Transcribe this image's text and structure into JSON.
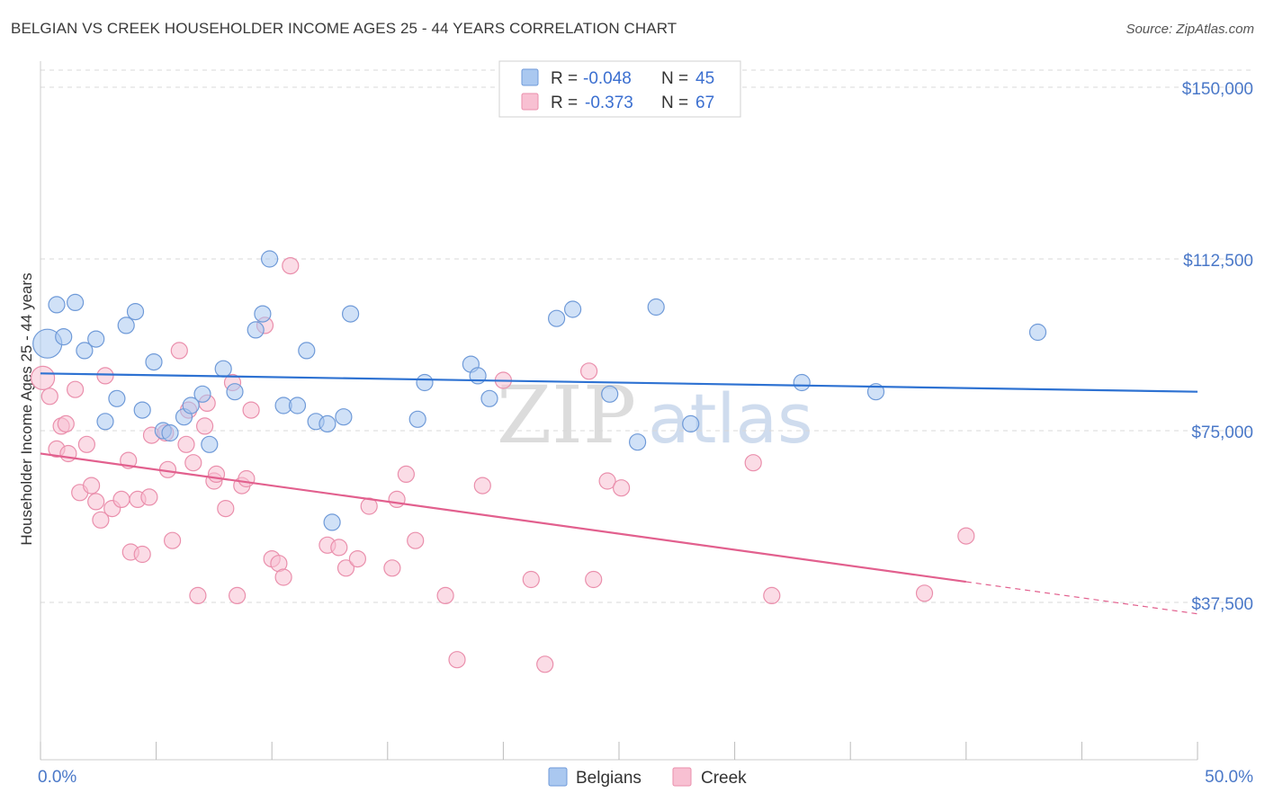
{
  "header": {
    "title": "BELGIAN VS CREEK HOUSEHOLDER INCOME AGES 25 - 44 YEARS CORRELATION CHART",
    "source": "Source: ZipAtlas.com"
  },
  "watermark": {
    "part1": "ZIP",
    "part2": "atlas"
  },
  "colors": {
    "belgian_fill": "#aac8f0",
    "belgian_stroke": "#6f9ad8",
    "belgian_line": "#2e72d2",
    "creek_fill": "#f8c0d2",
    "creek_stroke": "#ea8fac",
    "creek_line": "#e2608e",
    "grid": "#d8d8d8",
    "axis_label": "#4a78c8"
  },
  "legend": {
    "rows": [
      {
        "r_label": "R = ",
        "r_value": "-0.048",
        "n_label": "N = ",
        "n_value": "45"
      },
      {
        "r_label": "R = ",
        "r_value": "-0.373",
        "n_label": "N = ",
        "n_value": "67"
      }
    ]
  },
  "bottom_legend": {
    "items": [
      {
        "label": "Belgians"
      },
      {
        "label": "Creek"
      }
    ]
  },
  "chart_data": {
    "type": "scatter",
    "title": "BELGIAN VS CREEK HOUSEHOLDER INCOME AGES 25 - 44 YEARS CORRELATION CHART",
    "xlabel": "",
    "ylabel": "Householder Income Ages 25 - 44 years",
    "xlim": [
      0,
      50
    ],
    "ylim": [
      0,
      155000
    ],
    "x_tick_labels": [
      {
        "value": 0,
        "label": "0.0%"
      },
      {
        "value": 50,
        "label": "50.0%"
      }
    ],
    "x_minor_ticks": [
      0,
      5,
      10,
      15,
      20,
      25,
      30,
      35,
      40,
      45,
      50
    ],
    "y_ticks": [
      {
        "value": 37500,
        "label": "$37,500"
      },
      {
        "value": 75000,
        "label": "$75,000"
      },
      {
        "value": 112500,
        "label": "$112,500"
      },
      {
        "value": 150000,
        "label": "$150,000"
      }
    ],
    "series": [
      {
        "name": "Belgians",
        "trend": {
          "x1": 0,
          "y1": 87500,
          "x2": 50,
          "y2": 83500,
          "solid_to": 50
        },
        "points": [
          [
            0.3,
            94000,
            16
          ],
          [
            0.7,
            102500,
            9
          ],
          [
            1.0,
            95500,
            9
          ],
          [
            1.5,
            103000,
            9
          ],
          [
            1.9,
            92500,
            9
          ],
          [
            2.4,
            95000,
            9
          ],
          [
            2.8,
            77000,
            9
          ],
          [
            3.3,
            82000,
            9
          ],
          [
            3.7,
            98000,
            9
          ],
          [
            4.1,
            101000,
            9
          ],
          [
            4.4,
            79500,
            9
          ],
          [
            4.9,
            90000,
            9
          ],
          [
            5.3,
            75000,
            9
          ],
          [
            5.6,
            74500,
            9
          ],
          [
            6.2,
            78000,
            9
          ],
          [
            6.5,
            80500,
            9
          ],
          [
            7.0,
            83000,
            9
          ],
          [
            7.3,
            72000,
            9
          ],
          [
            7.9,
            88500,
            9
          ],
          [
            8.4,
            83500,
            9
          ],
          [
            9.3,
            97000,
            9
          ],
          [
            9.6,
            100500,
            9
          ],
          [
            9.9,
            112500,
            9
          ],
          [
            10.5,
            80500,
            9
          ],
          [
            11.1,
            80500,
            9
          ],
          [
            11.5,
            92500,
            9
          ],
          [
            11.9,
            77000,
            9
          ],
          [
            12.4,
            76500,
            9
          ],
          [
            13.1,
            78000,
            9
          ],
          [
            13.4,
            100500,
            9
          ],
          [
            16.3,
            77500,
            9
          ],
          [
            16.6,
            85500,
            9
          ],
          [
            18.6,
            89500,
            9
          ],
          [
            18.9,
            87000,
            9
          ],
          [
            19.4,
            82000,
            9
          ],
          [
            22.3,
            99500,
            9
          ],
          [
            23.0,
            101500,
            9
          ],
          [
            24.6,
            83000,
            9
          ],
          [
            25.8,
            72500,
            9
          ],
          [
            26.6,
            102000,
            9
          ],
          [
            28.1,
            76500,
            9
          ],
          [
            32.9,
            85500,
            9
          ],
          [
            36.1,
            83500,
            9
          ],
          [
            43.1,
            96500,
            9
          ],
          [
            12.6,
            55000,
            9
          ]
        ]
      },
      {
        "name": "Creek",
        "trend": {
          "x1": 0,
          "y1": 70000,
          "x2": 50,
          "y2": 35000,
          "solid_to": 40
        },
        "points": [
          [
            0.1,
            86500,
            13
          ],
          [
            0.4,
            82500,
            9
          ],
          [
            0.7,
            71000,
            9
          ],
          [
            0.9,
            76000,
            9
          ],
          [
            1.1,
            76500,
            9
          ],
          [
            1.2,
            70000,
            9
          ],
          [
            1.5,
            84000,
            9
          ],
          [
            1.7,
            61500,
            9
          ],
          [
            2.0,
            72000,
            9
          ],
          [
            2.2,
            63000,
            9
          ],
          [
            2.4,
            59500,
            9
          ],
          [
            2.6,
            55500,
            9
          ],
          [
            2.8,
            87000,
            9
          ],
          [
            3.1,
            58000,
            9
          ],
          [
            3.5,
            60000,
            9
          ],
          [
            3.8,
            68500,
            9
          ],
          [
            3.9,
            48500,
            9
          ],
          [
            4.2,
            60000,
            9
          ],
          [
            4.4,
            48000,
            9
          ],
          [
            4.7,
            60500,
            9
          ],
          [
            4.8,
            74000,
            9
          ],
          [
            5.4,
            74500,
            9
          ],
          [
            5.5,
            66500,
            9
          ],
          [
            5.7,
            51000,
            9
          ],
          [
            6.0,
            92500,
            9
          ],
          [
            6.3,
            72000,
            9
          ],
          [
            6.6,
            68000,
            9
          ],
          [
            6.8,
            39000,
            9
          ],
          [
            7.1,
            76000,
            9
          ],
          [
            7.2,
            81000,
            9
          ],
          [
            7.5,
            64000,
            9
          ],
          [
            7.6,
            65500,
            9
          ],
          [
            8.0,
            58000,
            9
          ],
          [
            8.3,
            85500,
            9
          ],
          [
            8.5,
            39000,
            9
          ],
          [
            8.7,
            63000,
            9
          ],
          [
            8.9,
            64500,
            9
          ],
          [
            9.1,
            79500,
            9
          ],
          [
            9.7,
            98000,
            9
          ],
          [
            10.0,
            47000,
            9
          ],
          [
            10.3,
            46000,
            9
          ],
          [
            10.5,
            43000,
            9
          ],
          [
            10.8,
            111000,
            9
          ],
          [
            12.4,
            50000,
            9
          ],
          [
            12.9,
            49500,
            9
          ],
          [
            13.2,
            45000,
            9
          ],
          [
            13.7,
            47000,
            9
          ],
          [
            14.2,
            58500,
            9
          ],
          [
            15.2,
            45000,
            9
          ],
          [
            15.4,
            60000,
            9
          ],
          [
            15.8,
            65500,
            9
          ],
          [
            16.2,
            51000,
            9
          ],
          [
            17.5,
            39000,
            9
          ],
          [
            18.0,
            25000,
            9
          ],
          [
            19.1,
            63000,
            9
          ],
          [
            20.0,
            86000,
            9
          ],
          [
            21.2,
            42500,
            9
          ],
          [
            21.8,
            24000,
            9
          ],
          [
            23.7,
            88000,
            9
          ],
          [
            23.9,
            42500,
            9
          ],
          [
            24.5,
            64000,
            9
          ],
          [
            25.1,
            62500,
            9
          ],
          [
            30.8,
            68000,
            9
          ],
          [
            31.6,
            39000,
            9
          ],
          [
            38.2,
            39500,
            9
          ],
          [
            40.0,
            52000,
            9
          ],
          [
            6.4,
            79500,
            9
          ]
        ]
      }
    ]
  }
}
